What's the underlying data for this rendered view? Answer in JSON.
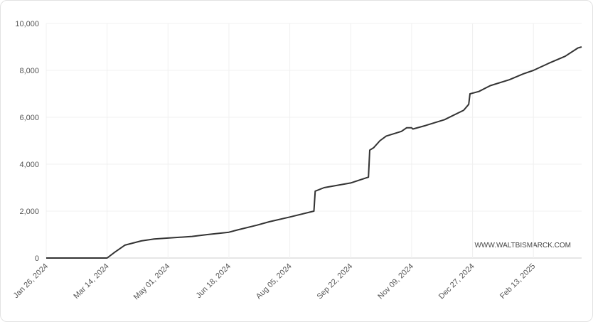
{
  "chart_data": {
    "type": "line",
    "watermark": "WWW.WALTBISMARCK.COM",
    "x": [
      "2024-01-26",
      "2024-03-14",
      "2024-03-20",
      "2024-03-28",
      "2024-04-10",
      "2024-04-20",
      "2024-05-01",
      "2024-05-20",
      "2024-06-01",
      "2024-06-18",
      "2024-06-25",
      "2024-07-10",
      "2024-07-20",
      "2024-08-05",
      "2024-08-24",
      "2024-08-25",
      "2024-09-01",
      "2024-09-22",
      "2024-10-06",
      "2024-10-07",
      "2024-10-10",
      "2024-10-15",
      "2024-10-20",
      "2024-11-01",
      "2024-11-05",
      "2024-11-09",
      "2024-11-10",
      "2024-11-20",
      "2024-12-05",
      "2024-12-20",
      "2024-12-24",
      "2024-12-25",
      "2025-01-01",
      "2025-01-10",
      "2025-01-25",
      "2025-02-05",
      "2025-02-13",
      "2025-02-25",
      "2025-03-10",
      "2025-03-20",
      "2025-03-23"
    ],
    "series": [
      {
        "color": "#333333",
        "values": [
          0,
          0,
          250,
          550,
          730,
          810,
          850,
          920,
          1000,
          1100,
          1200,
          1400,
          1550,
          1750,
          2000,
          2850,
          3000,
          3200,
          3450,
          4600,
          4700,
          5000,
          5200,
          5400,
          5550,
          5550,
          5500,
          5650,
          5900,
          6300,
          6550,
          7000,
          7100,
          7350,
          7600,
          7850,
          8000,
          8300,
          8600,
          8950,
          9000
        ]
      }
    ],
    "xlim": [
      "2024-01-26",
      "2025-03-23"
    ],
    "xticks": [
      {
        "value": "2024-01-26",
        "label": "Jan 26, 2024"
      },
      {
        "value": "2024-03-14",
        "label": "Mar 14, 2024"
      },
      {
        "value": "2024-05-01",
        "label": "May 01, 2024"
      },
      {
        "value": "2024-06-18",
        "label": "Jun 18, 2024"
      },
      {
        "value": "2024-08-05",
        "label": "Aug 05, 2024"
      },
      {
        "value": "2024-09-22",
        "label": "Sep 22, 2024"
      },
      {
        "value": "2024-11-09",
        "label": "Nov 09, 2024"
      },
      {
        "value": "2024-12-27",
        "label": "Dec 27, 2024"
      },
      {
        "value": "2025-02-13",
        "label": "Feb 13, 2025"
      }
    ],
    "ylim": [
      0,
      10000
    ],
    "yticks": [
      0,
      {
        "value": 2000,
        "label": "2,000"
      },
      {
        "value": 4000,
        "label": "4,000"
      },
      {
        "value": 6000,
        "label": "6,000"
      },
      {
        "value": 8000,
        "label": "8,000"
      },
      {
        "value": 10000,
        "label": "10,000"
      }
    ],
    "grid": true
  }
}
